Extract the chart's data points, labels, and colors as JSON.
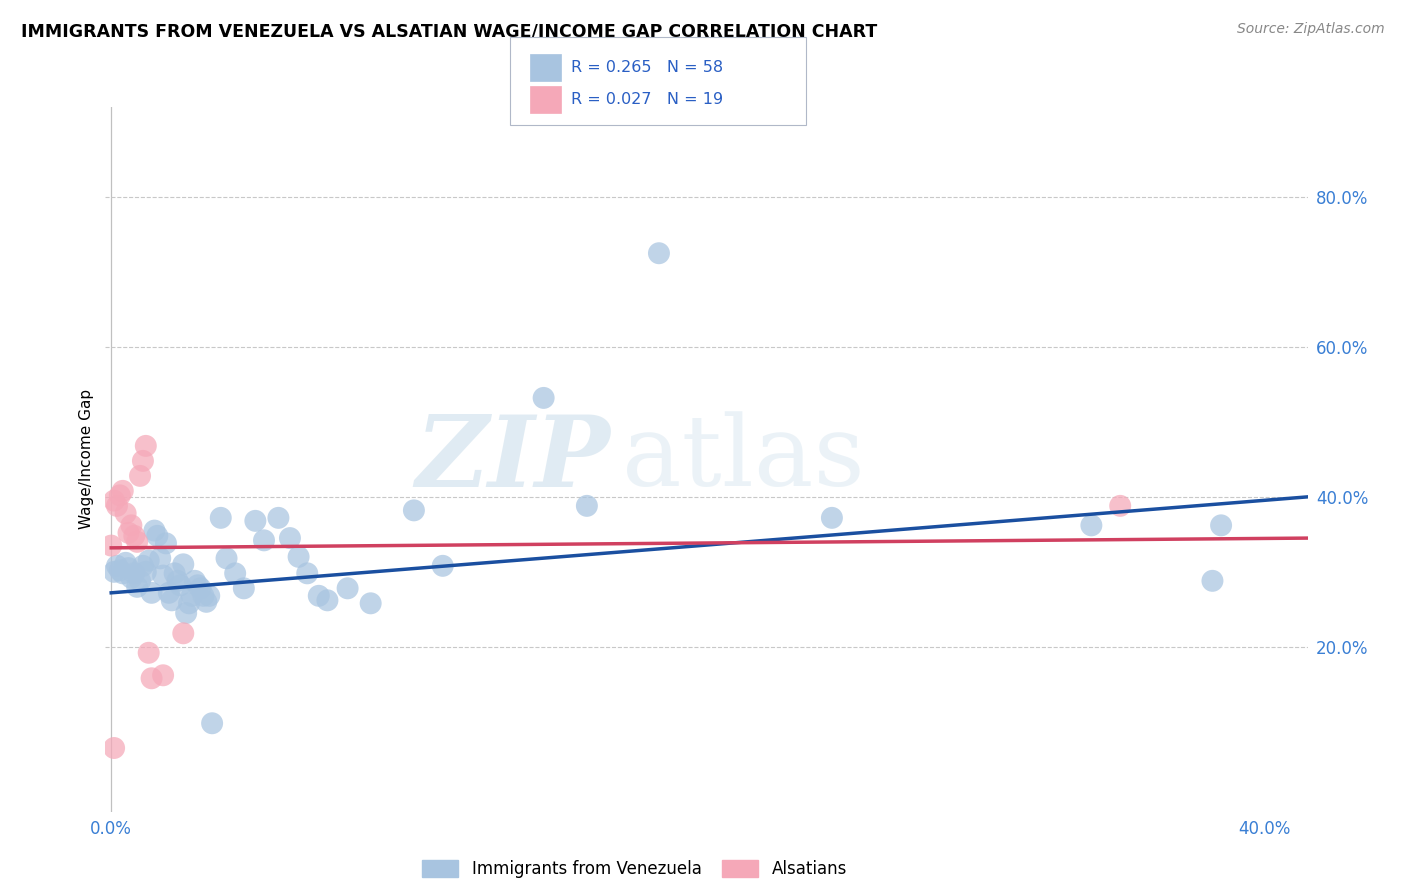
{
  "title": "IMMIGRANTS FROM VENEZUELA VS ALSATIAN WAGE/INCOME GAP CORRELATION CHART",
  "source": "Source: ZipAtlas.com",
  "ylabel_label": "Wage/Income Gap",
  "xlim": [
    -0.002,
    0.415
  ],
  "ylim": [
    -0.02,
    0.92
  ],
  "ytick_right_labels": [
    "20.0%",
    "40.0%",
    "60.0%",
    "80.0%"
  ],
  "ytick_right_values": [
    0.2,
    0.4,
    0.6,
    0.8
  ],
  "watermark_zip": "ZIP",
  "watermark_atlas": "atlas",
  "legend_blue_r": "R = 0.265",
  "legend_blue_n": "N = 58",
  "legend_pink_r": "R = 0.027",
  "legend_pink_n": "N = 19",
  "blue_color": "#a8c4e0",
  "pink_color": "#f5a8b8",
  "blue_line_color": "#1a4fa0",
  "pink_line_color": "#d04060",
  "blue_scatter": [
    [
      0.001,
      0.3
    ],
    [
      0.002,
      0.308
    ],
    [
      0.003,
      0.302
    ],
    [
      0.004,
      0.298
    ],
    [
      0.005,
      0.312
    ],
    [
      0.006,
      0.305
    ],
    [
      0.007,
      0.292
    ],
    [
      0.008,
      0.298
    ],
    [
      0.009,
      0.28
    ],
    [
      0.01,
      0.288
    ],
    [
      0.011,
      0.308
    ],
    [
      0.012,
      0.3
    ],
    [
      0.013,
      0.315
    ],
    [
      0.014,
      0.272
    ],
    [
      0.015,
      0.355
    ],
    [
      0.016,
      0.348
    ],
    [
      0.017,
      0.318
    ],
    [
      0.018,
      0.295
    ],
    [
      0.019,
      0.338
    ],
    [
      0.02,
      0.272
    ],
    [
      0.021,
      0.262
    ],
    [
      0.022,
      0.298
    ],
    [
      0.023,
      0.288
    ],
    [
      0.024,
      0.282
    ],
    [
      0.025,
      0.31
    ],
    [
      0.026,
      0.245
    ],
    [
      0.027,
      0.258
    ],
    [
      0.028,
      0.268
    ],
    [
      0.029,
      0.288
    ],
    [
      0.03,
      0.282
    ],
    [
      0.031,
      0.278
    ],
    [
      0.032,
      0.268
    ],
    [
      0.033,
      0.26
    ],
    [
      0.034,
      0.268
    ],
    [
      0.035,
      0.098
    ],
    [
      0.038,
      0.372
    ],
    [
      0.04,
      0.318
    ],
    [
      0.043,
      0.298
    ],
    [
      0.046,
      0.278
    ],
    [
      0.05,
      0.368
    ],
    [
      0.053,
      0.342
    ],
    [
      0.058,
      0.372
    ],
    [
      0.062,
      0.345
    ],
    [
      0.065,
      0.32
    ],
    [
      0.068,
      0.298
    ],
    [
      0.072,
      0.268
    ],
    [
      0.075,
      0.262
    ],
    [
      0.082,
      0.278
    ],
    [
      0.09,
      0.258
    ],
    [
      0.105,
      0.382
    ],
    [
      0.115,
      0.308
    ],
    [
      0.15,
      0.532
    ],
    [
      0.165,
      0.388
    ],
    [
      0.19,
      0.725
    ],
    [
      0.25,
      0.372
    ],
    [
      0.34,
      0.362
    ],
    [
      0.382,
      0.288
    ],
    [
      0.385,
      0.362
    ]
  ],
  "pink_scatter": [
    [
      0.001,
      0.065
    ],
    [
      0.001,
      0.395
    ],
    [
      0.002,
      0.388
    ],
    [
      0.003,
      0.402
    ],
    [
      0.004,
      0.408
    ],
    [
      0.005,
      0.378
    ],
    [
      0.006,
      0.352
    ],
    [
      0.007,
      0.362
    ],
    [
      0.008,
      0.348
    ],
    [
      0.009,
      0.34
    ],
    [
      0.01,
      0.428
    ],
    [
      0.011,
      0.448
    ],
    [
      0.012,
      0.468
    ],
    [
      0.013,
      0.192
    ],
    [
      0.014,
      0.158
    ],
    [
      0.018,
      0.162
    ],
    [
      0.025,
      0.218
    ],
    [
      0.0,
      0.335
    ],
    [
      0.35,
      0.388
    ]
  ],
  "blue_trendline_x": [
    0.0,
    0.415
  ],
  "blue_trendline_y": [
    0.272,
    0.4
  ],
  "pink_trendline_x": [
    0.0,
    0.415
  ],
  "pink_trendline_y": [
    0.332,
    0.345
  ]
}
